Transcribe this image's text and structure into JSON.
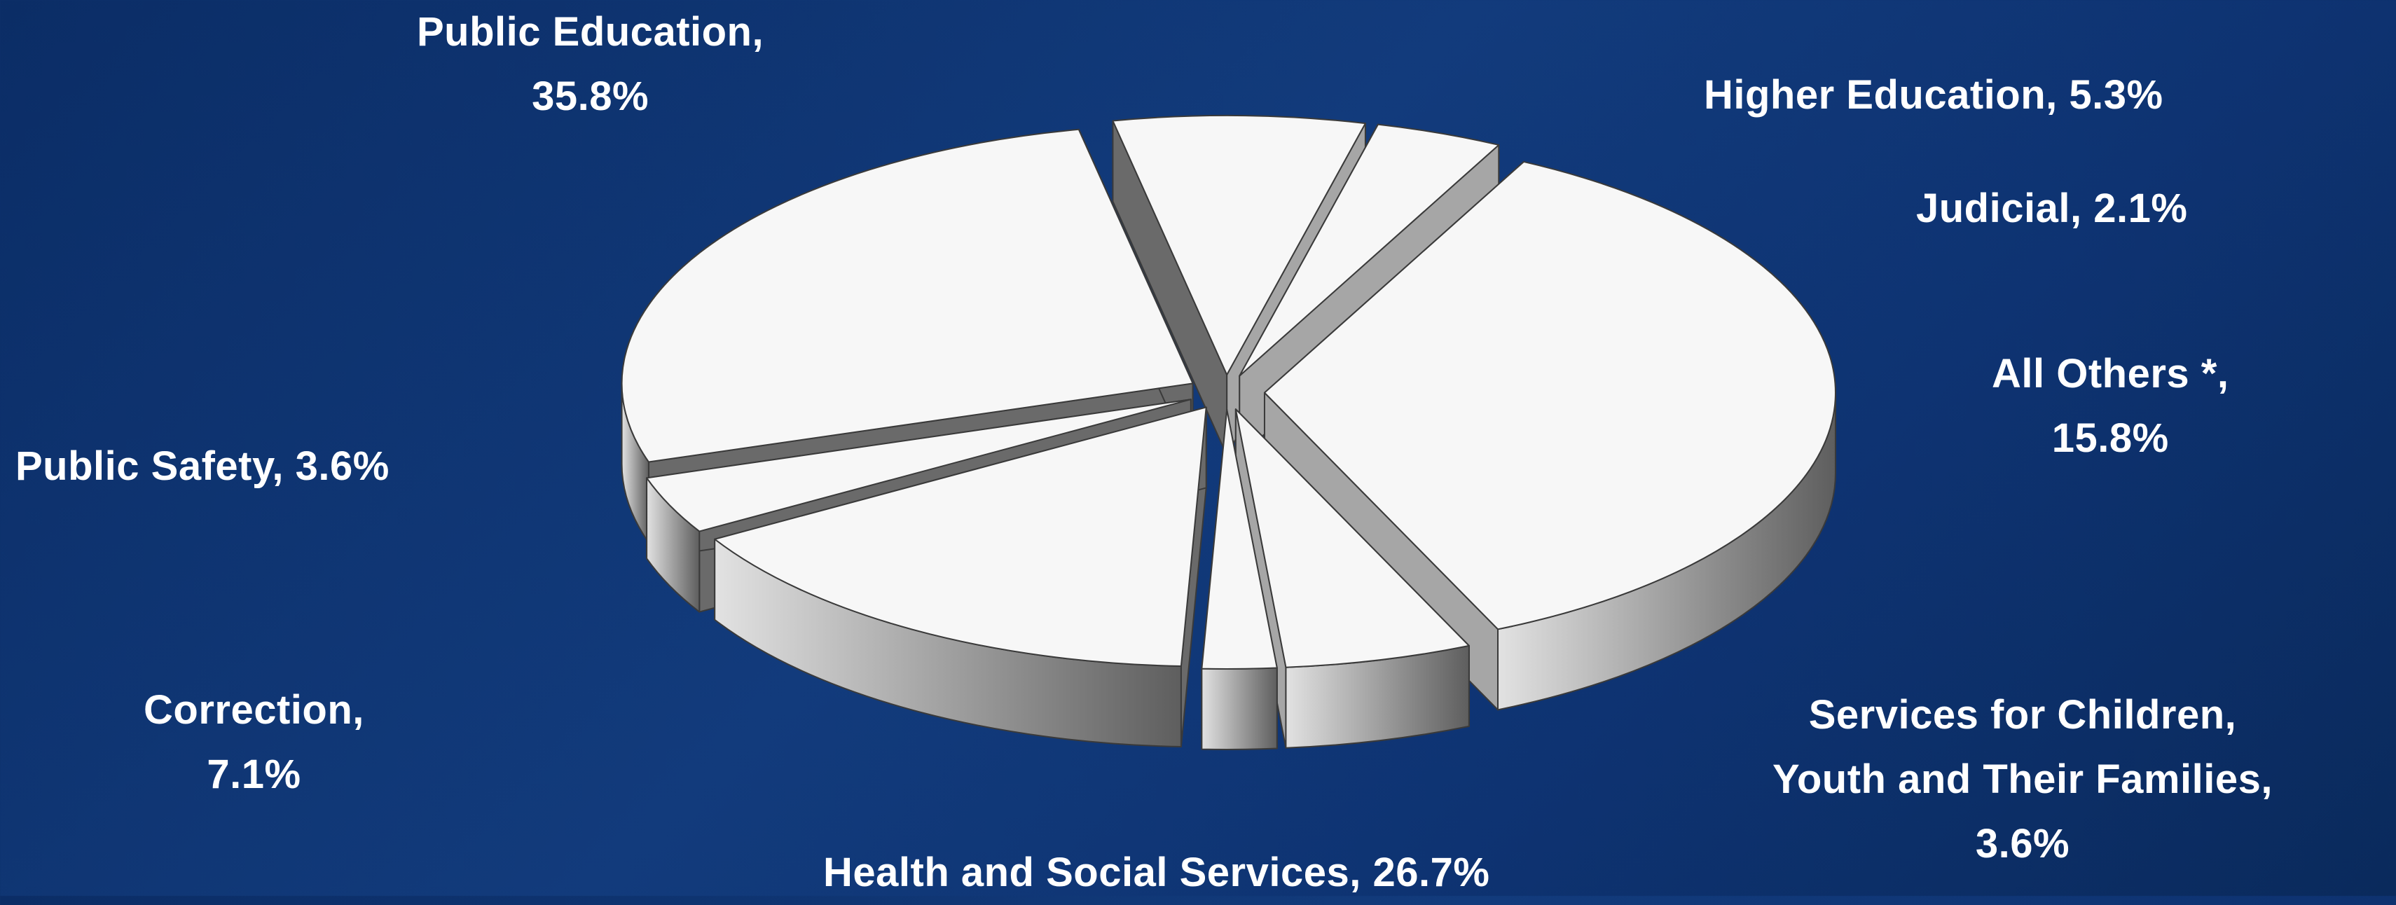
{
  "chart_data": {
    "type": "pie",
    "title": "",
    "style": "3d-exploded",
    "colors": {
      "background": "#0e3372",
      "top": "#f7f7f7",
      "side_dark": "#6a6a6a",
      "side_light": "#d8d8d8",
      "label": "#ffffff"
    },
    "slices": [
      {
        "name": "Public Education",
        "value": 35.8,
        "label_lines": [
          "Public Education,",
          "35.8%"
        ]
      },
      {
        "name": "Higher Education",
        "value": 5.3,
        "label_lines": [
          "Higher Education, 5.3%"
        ]
      },
      {
        "name": "Judicial",
        "value": 2.1,
        "label_lines": [
          "Judicial, 2.1%"
        ]
      },
      {
        "name": "All Others *",
        "value": 15.8,
        "label_lines": [
          "All Others *,",
          "15.8%"
        ]
      },
      {
        "name": "Services for Children, Youth and Their Families",
        "value": 3.6,
        "label_lines": [
          "Services for Children,",
          "Youth and Their Families,",
          "3.6%"
        ]
      },
      {
        "name": "Health and Social Services",
        "value": 26.7,
        "label_lines": [
          "Health and Social Services, 26.7%"
        ]
      },
      {
        "name": "Correction",
        "value": 7.1,
        "label_lines": [
          "Correction,",
          "7.1%"
        ]
      },
      {
        "name": "Public Safety",
        "value": 3.6,
        "label_lines": [
          "Public Safety, 3.6%"
        ]
      }
    ]
  }
}
